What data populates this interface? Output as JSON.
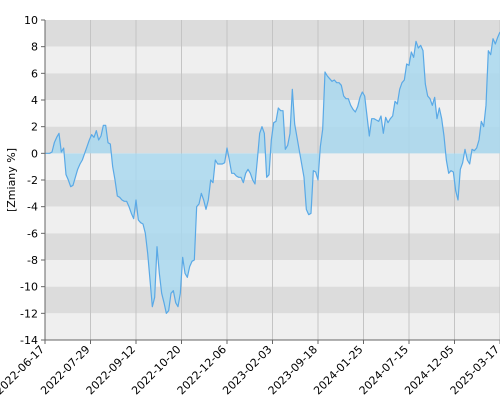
{
  "chart_data": {
    "type": "area",
    "ylabel": "[Zmiany %]",
    "ylim": [
      -14,
      10
    ],
    "yticks": [
      10,
      8,
      6,
      4,
      2,
      0,
      -2,
      -4,
      -6,
      -8,
      -10,
      -12,
      -14
    ],
    "xtick_labels": [
      "2022-06-17",
      "2022-07-29",
      "2022-09-12",
      "2022-10-20",
      "2022-12-06",
      "2023-02-03",
      "2023-09-18",
      "2024-01-25",
      "2024-07-15",
      "2024-12-05",
      "2025-03-17"
    ],
    "grid": true,
    "colors": {
      "line": "#5aa9e6",
      "fill": "#a9d8ef",
      "band_dark": "#dcdcdc",
      "band_light": "#efefef"
    },
    "series": [
      {
        "values": [
          0,
          0,
          0,
          0.1,
          0.8,
          1.2,
          1.5,
          0.1,
          0.4,
          -1.6,
          -2,
          -2.5,
          -2.4,
          -1.8,
          -1.2,
          -0.8,
          -0.5,
          0,
          0.5,
          1,
          1.4,
          1.2,
          1.7,
          1.0,
          1.3,
          2.1,
          2.1,
          0.8,
          0.7,
          -1,
          -2,
          -3.2,
          -3.3,
          -3.5,
          -3.6,
          -3.6,
          -4,
          -4.5,
          -4.9,
          -3.5,
          -5,
          -5.2,
          -5.3,
          -6,
          -7.5,
          -9.5,
          -11.5,
          -10.8,
          -7,
          -9,
          -10.5,
          -11.2,
          -12,
          -11.8,
          -10.5,
          -10.3,
          -11.2,
          -11.5,
          -10.5,
          -7.8,
          -9,
          -9.3,
          -8.5,
          -8.1,
          -8,
          -4,
          -3.8,
          -3,
          -3.5,
          -4.2,
          -3.5,
          -2,
          -2.2,
          -0.5,
          -0.8,
          -0.8,
          -0.8,
          -0.7,
          0.4,
          -0.5,
          -1.5,
          -1.5,
          -1.7,
          -1.8,
          -1.8,
          -2.2,
          -1.5,
          -1.2,
          -1.5,
          -2,
          -2.3,
          -0.5,
          1.5,
          2,
          1.5,
          -1.8,
          -1.6,
          1,
          2.3,
          2.4,
          3.4,
          3.2,
          3.2,
          0.3,
          0.6,
          1.5,
          4.8,
          2.2,
          1.2,
          0.2,
          -0.8,
          -1.8,
          -4.2,
          -4.6,
          -4.5,
          -1.3,
          -1.4,
          -2,
          0.5,
          1.8,
          6.1,
          5.8,
          5.6,
          5.4,
          5.5,
          5.3,
          5.3,
          5.1,
          4.3,
          4.1,
          4.1,
          3.6,
          3.3,
          3.1,
          3.5,
          4.2,
          4.6,
          4.3,
          2.8,
          1.3,
          2.6,
          2.6,
          2.5,
          2.4,
          2.8,
          1.5,
          2.7,
          2.3,
          2.6,
          2.8,
          3.9,
          3.7,
          4.8,
          5.3,
          5.5,
          6.7,
          6.6,
          7.6,
          7.2,
          8.4,
          7.9,
          8.1,
          7.7,
          5.2,
          4.3,
          4.1,
          3.6,
          4.2,
          2.6,
          3.4,
          2.6,
          1.3,
          -0.5,
          -1.5,
          -1.3,
          -1.4,
          -2.8,
          -3.5,
          -1.2,
          -0.7,
          0.3,
          -0.5,
          -0.8,
          0.3,
          0.2,
          0.4,
          1,
          2.4,
          2,
          3.6,
          7.7,
          7.4,
          8.6,
          8.2,
          8.7,
          9.1
        ]
      }
    ]
  }
}
